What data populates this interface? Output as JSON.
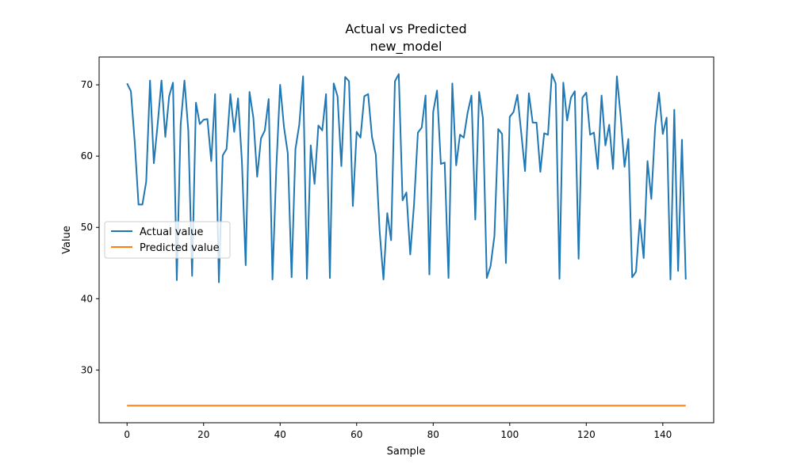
{
  "chart_data": {
    "type": "line",
    "title": "Actual vs Predicted",
    "subtitle": "new_model",
    "xlabel": "Sample",
    "ylabel": "Value",
    "xlim": [
      -7.3,
      153.3
    ],
    "ylim": [
      22.6,
      73.9
    ],
    "xticks": [
      0,
      20,
      40,
      60,
      80,
      100,
      120,
      140
    ],
    "yticks": [
      30,
      40,
      50,
      60,
      70
    ],
    "grid": false,
    "legend_position": "center-left",
    "series": [
      {
        "name": "Actual value",
        "color": "#1f77b4",
        "values": [
          70.2,
          69.1,
          62,
          53.2,
          53.2,
          56.4,
          70.6,
          59,
          64.5,
          70.6,
          62.7,
          68.4,
          70.3,
          42.6,
          64.4,
          70.6,
          63.6,
          43.2,
          67.5,
          64.5,
          65.1,
          65.2,
          59.3,
          68.7,
          42.3,
          60.1,
          61,
          68.7,
          63.4,
          68.1,
          59.4,
          44.7,
          69,
          65.4,
          57.1,
          62.5,
          63.6,
          68,
          42.7,
          58.3,
          70,
          64.1,
          60.4,
          43,
          61,
          64.4,
          71.2,
          42.8,
          61.5,
          56.1,
          64.3,
          63.6,
          68.7,
          42.9,
          70.2,
          68.4,
          58.6,
          71.1,
          70.5,
          53,
          63.4,
          62.6,
          68.4,
          68.7,
          62.7,
          60.2,
          49.5,
          42.7,
          52,
          48.2,
          70.5,
          71.5,
          53.8,
          54.9,
          46.2,
          53.3,
          63.3,
          64,
          68.5,
          43.4,
          66.2,
          69.2,
          58.9,
          59.1,
          42.9,
          70.2,
          58.7,
          63,
          62.6,
          66.1,
          68.5,
          51.1,
          69,
          65.3,
          42.9,
          44.6,
          48.8,
          63.8,
          63.1,
          45,
          65.5,
          66.2,
          68.6,
          63.3,
          57.9,
          68.8,
          64.7,
          64.7,
          57.8,
          63.2,
          63,
          71.5,
          70.2,
          42.8,
          70.3,
          65,
          68.2,
          69.1,
          45.6,
          68.2,
          68.9,
          63,
          63.3,
          58.2,
          68.5,
          61.5,
          64.4,
          58.2,
          71.2,
          65.5,
          58.5,
          62.4,
          43,
          43.8,
          51.1,
          45.7,
          59.3,
          54,
          64.1,
          68.9,
          63.1,
          65.4,
          42.7,
          66.5,
          43.9,
          62.3,
          42.7
        ]
      },
      {
        "name": "Predicted value",
        "color": "#ff7f0e",
        "values": "constant",
        "constant_value": 25
      }
    ]
  }
}
